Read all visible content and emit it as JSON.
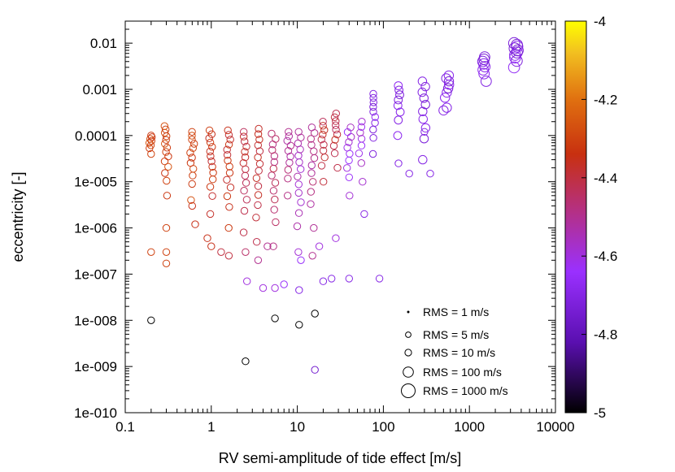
{
  "chart_data": {
    "type": "scatter",
    "xlabel": "RV semi-amplitude of tide effect [m/s]",
    "ylabel": "eccentricity [-]",
    "x_scale": "log",
    "y_scale": "log",
    "xlim": [
      0.1,
      10000
    ],
    "ylim": [
      1e-10,
      0.03
    ],
    "x_ticks": [
      "0.1",
      "1",
      "10",
      "100",
      "1000",
      "10000"
    ],
    "y_ticks": [
      "0.01",
      "0.001",
      "0.0001",
      "1e-005",
      "1e-006",
      "1e-007",
      "1e-008",
      "1e-009",
      "1e-010"
    ],
    "colorbar": {
      "range": [
        -5,
        -4
      ],
      "ticks": [
        "-4",
        "-4.2",
        "-4.4",
        "-4.6",
        "-4.8",
        "-5"
      ],
      "palette": [
        "#000000",
        "#5a0fb0",
        "#9a30ff",
        "#b53080",
        "#c83010",
        "#e07010",
        "#f2c020",
        "#ffff00"
      ]
    },
    "grid": false,
    "legend": {
      "placement": "bottom-right",
      "entries": [
        {
          "label": "RMS = 1 m/s",
          "rms": 1
        },
        {
          "label": "RMS = 5 m/s",
          "rms": 5
        },
        {
          "label": "RMS = 10 m/s",
          "rms": 10
        },
        {
          "label": "RMS = 100 m/s",
          "rms": 100
        },
        {
          "label": "RMS = 1000 m/s",
          "rms": 1000
        }
      ]
    },
    "points": [
      {
        "x": 0.2,
        "y": 1e-08,
        "c": -5.0,
        "rms": 10
      },
      {
        "x": 2.5,
        "y": 1.3e-09,
        "c": -5.0,
        "rms": 10
      },
      {
        "x": 5.5,
        "y": 1.1e-08,
        "c": -5.0,
        "rms": 10
      },
      {
        "x": 10.5,
        "y": 8e-09,
        "c": -5.0,
        "rms": 10
      },
      {
        "x": 16,
        "y": 1.4e-08,
        "c": -5.0,
        "rms": 10
      },
      {
        "x": 16,
        "y": 8.5e-10,
        "c": -4.75,
        "rms": 10
      },
      {
        "x": 0.2,
        "y": 3e-07,
        "c": -4.3,
        "rms": 10
      },
      {
        "x": 0.3,
        "y": 1.7e-07,
        "c": -4.3,
        "rms": 10
      },
      {
        "x": 0.3,
        "y": 3e-07,
        "c": -4.3,
        "rms": 10
      },
      {
        "x": 0.3,
        "y": 1e-06,
        "c": -4.3,
        "rms": 10
      },
      {
        "x": 0.65,
        "y": 1.2e-06,
        "c": -4.35,
        "rms": 10
      },
      {
        "x": 0.6,
        "y": 3e-06,
        "c": -4.35,
        "rms": 10
      },
      {
        "x": 0.9,
        "y": 6e-07,
        "c": -4.35,
        "rms": 10
      },
      {
        "x": 1.0,
        "y": 4e-07,
        "c": -4.35,
        "rms": 10
      },
      {
        "x": 1.3,
        "y": 3e-07,
        "c": -4.4,
        "rms": 10
      },
      {
        "x": 1.6,
        "y": 2.5e-07,
        "c": -4.4,
        "rms": 10
      },
      {
        "x": 2.5,
        "y": 3e-07,
        "c": -4.45,
        "rms": 10
      },
      {
        "x": 2.6,
        "y": 7e-08,
        "c": -4.6,
        "rms": 10
      },
      {
        "x": 3.5,
        "y": 2e-07,
        "c": -4.5,
        "rms": 10
      },
      {
        "x": 4.0,
        "y": 5e-08,
        "c": -4.6,
        "rms": 10
      },
      {
        "x": 4.5,
        "y": 4e-07,
        "c": -4.5,
        "rms": 10
      },
      {
        "x": 5.5,
        "y": 5e-08,
        "c": -4.6,
        "rms": 10
      },
      {
        "x": 7.0,
        "y": 6e-08,
        "c": -4.65,
        "rms": 10
      },
      {
        "x": 10.5,
        "y": 4.5e-08,
        "c": -4.7,
        "rms": 10
      },
      {
        "x": 11,
        "y": 2e-07,
        "c": -4.65,
        "rms": 10
      },
      {
        "x": 15,
        "y": 2.5e-07,
        "c": -4.5,
        "rms": 10
      },
      {
        "x": 18,
        "y": 4e-07,
        "c": -4.6,
        "rms": 10
      },
      {
        "x": 20,
        "y": 7e-08,
        "c": -4.7,
        "rms": 10
      },
      {
        "x": 25,
        "y": 8e-08,
        "c": -4.7,
        "rms": 10
      },
      {
        "x": 28,
        "y": 6e-07,
        "c": -4.6,
        "rms": 10
      },
      {
        "x": 40,
        "y": 8e-08,
        "c": -4.7,
        "rms": 10
      },
      {
        "x": 60,
        "y": 2e-06,
        "c": -4.7,
        "rms": 10
      },
      {
        "x": 90,
        "y": 8e-08,
        "c": -4.7,
        "rms": 10
      },
      {
        "x": 150,
        "y": 2.5e-05,
        "c": -4.7,
        "rms": 10
      },
      {
        "x": 200,
        "y": 1.5e-05,
        "c": -4.7,
        "rms": 10
      },
      {
        "x": 300,
        "y": 0.00012,
        "c": -4.7,
        "rms": 10
      },
      {
        "x": 500,
        "y": 0.00035,
        "c": -4.7,
        "rms": 50
      },
      {
        "x": 350,
        "y": 1.5e-05,
        "c": -4.7,
        "rms": 10
      }
    ],
    "clusters": [
      {
        "x": 0.2,
        "y_min": 4e-05,
        "y_max": 0.0001,
        "n": 8,
        "c": -4.3,
        "rms": 10
      },
      {
        "x": 0.3,
        "y_min": 5e-06,
        "y_max": 0.00016,
        "n": 14,
        "c": -4.3,
        "rms": 10
      },
      {
        "x": 0.6,
        "y_min": 4e-06,
        "y_max": 0.00012,
        "n": 12,
        "c": -4.3,
        "rms": 10
      },
      {
        "x": 1.0,
        "y_min": 2e-06,
        "y_max": 0.00013,
        "n": 14,
        "c": -4.35,
        "rms": 10
      },
      {
        "x": 1.6,
        "y_min": 1e-06,
        "y_max": 0.00013,
        "n": 14,
        "c": -4.35,
        "rms": 10
      },
      {
        "x": 2.5,
        "y_min": 8e-07,
        "y_max": 0.00012,
        "n": 14,
        "c": -4.4,
        "rms": 10
      },
      {
        "x": 3.5,
        "y_min": 5e-07,
        "y_max": 0.00014,
        "n": 14,
        "c": -4.4,
        "rms": 10
      },
      {
        "x": 5.3,
        "y_min": 4e-07,
        "y_max": 0.00011,
        "n": 14,
        "c": -4.45,
        "rms": 10
      },
      {
        "x": 8,
        "y_min": 5e-06,
        "y_max": 0.00012,
        "n": 10,
        "c": -4.5,
        "rms": 10
      },
      {
        "x": 10.5,
        "y_min": 3e-07,
        "y_max": 0.00012,
        "n": 14,
        "c": -4.55,
        "rms": 10
      },
      {
        "x": 15,
        "y_min": 1e-06,
        "y_max": 0.00015,
        "n": 12,
        "c": -4.5,
        "rms": 10
      },
      {
        "x": 20,
        "y_min": 1e-05,
        "y_max": 0.0002,
        "n": 10,
        "c": -4.4,
        "rms": 10
      },
      {
        "x": 28,
        "y_min": 2e-05,
        "y_max": 0.0003,
        "n": 10,
        "c": -4.4,
        "rms": 10
      },
      {
        "x": 40,
        "y_min": 5e-06,
        "y_max": 0.00015,
        "n": 10,
        "c": -4.6,
        "rms": 10
      },
      {
        "x": 55,
        "y_min": 1e-05,
        "y_max": 0.0002,
        "n": 8,
        "c": -4.6,
        "rms": 10
      },
      {
        "x": 80,
        "y_min": 4e-05,
        "y_max": 0.0008,
        "n": 10,
        "c": -4.7,
        "rms": 10
      },
      {
        "x": 150,
        "y_min": 0.0001,
        "y_max": 0.0012,
        "n": 8,
        "c": -4.7,
        "rms": 20
      },
      {
        "x": 300,
        "y_min": 3e-05,
        "y_max": 0.0015,
        "n": 10,
        "c": -4.7,
        "rms": 30
      },
      {
        "x": 550,
        "y_min": 0.0004,
        "y_max": 0.002,
        "n": 8,
        "c": -4.7,
        "rms": 50
      },
      {
        "x": 1500,
        "y_min": 0.0015,
        "y_max": 0.005,
        "n": 8,
        "c": -4.7,
        "rms": 100
      },
      {
        "x": 3500,
        "y_min": 0.003,
        "y_max": 0.01,
        "n": 10,
        "c": -4.7,
        "rms": 150
      }
    ]
  }
}
